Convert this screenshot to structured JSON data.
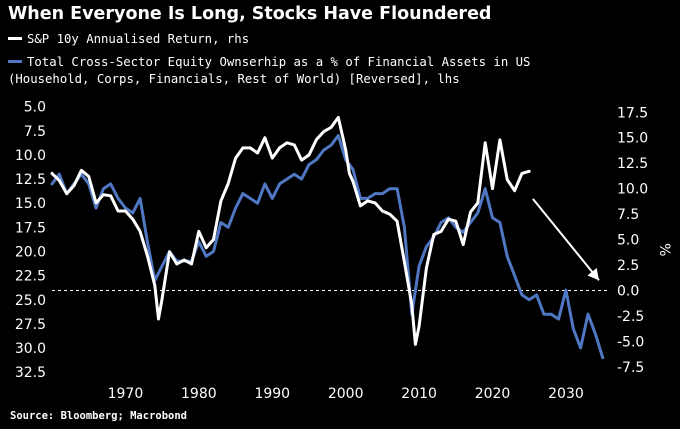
{
  "title": "When Everyone Is Long, Stocks Have Floundered",
  "source": "Source: Bloomberg; Macrobond",
  "colors": {
    "background": "#000000",
    "sp_line": "#ffffff",
    "equity_line": "#4f77c2",
    "text": "#ffffff",
    "arrow": "#ffffff"
  },
  "chart_data": {
    "type": "line",
    "title": "When Everyone Is Long, Stocks Have Floundered",
    "legend": [
      {
        "name": "S&P 10y Annualised Return, rhs",
        "color": "#ffffff"
      },
      {
        "name": "Total Cross-Sector Equity Ownserhip as a % of Financial Assets in US",
        "name_line2": "(Household, Corps, Financials, Rest of World) [Reversed], lhs",
        "color": "#4f77c2"
      }
    ],
    "xlim": [
      1960,
      2036
    ],
    "x_ticks": [
      "1970",
      "1980",
      "1990",
      "2000",
      "2010",
      "2020",
      "2030"
    ],
    "left_axis": {
      "ticks": [
        "5.0",
        "7.5",
        "10.0",
        "12.5",
        "15.0",
        "17.5",
        "20.0",
        "22.5",
        "25.0",
        "27.5",
        "30.0",
        "32.5"
      ],
      "range": [
        4,
        33
      ],
      "reversed": true
    },
    "right_axis": {
      "ticks": [
        "17.5",
        "15.0",
        "12.5",
        "10.0",
        "7.5",
        "5.0",
        "2.5",
        "0.0",
        "-2.5",
        "-5.0",
        "-7.5"
      ],
      "range": [
        -8.5,
        19
      ],
      "unit_label": "%",
      "reference_line": 0
    },
    "series": [
      {
        "name": "S&P 10y Annualised Return",
        "axis": "right",
        "color": "#ffffff",
        "x": [
          1960,
          1961,
          1962,
          1963,
          1964,
          1965,
          1966,
          1967,
          1968,
          1969,
          1970,
          1971,
          1972,
          1973,
          1974,
          1974.5,
          1975,
          1976,
          1977,
          1978,
          1979,
          1980,
          1981,
          1982,
          1983,
          1984,
          1985,
          1986,
          1987,
          1988,
          1989,
          1990,
          1991,
          1992,
          1993,
          1994,
          1995,
          1996,
          1997,
          1998,
          1999,
          2000,
          2000.5,
          2001,
          2002,
          2003,
          2004,
          2005,
          2006,
          2007,
          2008,
          2009,
          2009.5,
          2010,
          2011,
          2012,
          2013,
          2014,
          2015,
          2016,
          2017,
          2018,
          2019,
          2020,
          2021,
          2022,
          2023,
          2024,
          2025
        ],
        "values": [
          11.5,
          10.8,
          9.5,
          10.3,
          11.8,
          11.2,
          8.6,
          9.4,
          9.3,
          7.8,
          7.8,
          7.0,
          5.8,
          3.4,
          0.5,
          -2.8,
          -0.8,
          3.8,
          2.6,
          3.0,
          2.6,
          5.8,
          4.2,
          5.0,
          8.8,
          10.5,
          13.0,
          14.0,
          14.0,
          13.5,
          15.0,
          13.0,
          14.0,
          14.5,
          14.3,
          12.8,
          13.3,
          14.8,
          15.6,
          16.0,
          17.0,
          13.8,
          11.5,
          10.7,
          8.3,
          8.8,
          8.6,
          7.8,
          7.5,
          6.8,
          2.8,
          -1.4,
          -5.3,
          -3.5,
          2.2,
          5.5,
          5.8,
          7.0,
          6.8,
          4.5,
          7.7,
          8.6,
          14.5,
          10.0,
          14.8,
          10.9,
          9.8,
          11.5,
          11.7
        ]
      },
      {
        "name": "Total Cross-Sector Equity Ownership (% of Financial Assets, Reversed)",
        "axis": "left",
        "color": "#4f77c2",
        "x": [
          1960,
          1961,
          1962,
          1963,
          1964,
          1965,
          1966,
          1967,
          1968,
          1969,
          1970,
          1971,
          1972,
          1973,
          1974,
          1975,
          1976,
          1977,
          1978,
          1979,
          1980,
          1981,
          1982,
          1983,
          1984,
          1985,
          1986,
          1987,
          1988,
          1989,
          1990,
          1991,
          1992,
          1993,
          1994,
          1995,
          1996,
          1997,
          1998,
          1999,
          2000,
          2001,
          2002,
          2003,
          2004,
          2005,
          2006,
          2007,
          2008,
          2009,
          2010,
          2011,
          2012,
          2013,
          2014,
          2015,
          2016,
          2017,
          2018,
          2019,
          2020,
          2021,
          2022,
          2023,
          2024,
          2025,
          2026,
          2027,
          2028,
          2029,
          2030,
          2031,
          2032,
          2033,
          2034,
          2035
        ],
        "values": [
          13.0,
          12.0,
          14.0,
          13.0,
          12.0,
          13.0,
          15.5,
          13.5,
          13.0,
          14.5,
          15.5,
          16.0,
          14.5,
          19.0,
          23.0,
          21.5,
          20.0,
          21.0,
          21.0,
          21.0,
          19.0,
          20.5,
          20.0,
          17.0,
          17.5,
          15.5,
          14.0,
          14.5,
          15.0,
          13.0,
          14.5,
          13.0,
          12.5,
          12.0,
          12.5,
          11.0,
          10.5,
          9.5,
          9.0,
          8.0,
          10.5,
          11.5,
          14.5,
          14.5,
          14.0,
          14.0,
          13.5,
          13.5,
          17.5,
          26.5,
          21.5,
          19.5,
          18.5,
          17.0,
          16.5,
          17.5,
          18.0,
          17.0,
          16.0,
          13.5,
          16.5,
          17.0,
          20.5,
          22.5,
          24.5,
          25.0,
          24.5,
          26.5,
          26.5,
          27.0,
          24.0,
          28.0,
          30.0,
          26.5,
          28.5,
          31.0
        ]
      }
    ],
    "annotations": [
      {
        "type": "arrow",
        "from": {
          "x": 2025.5,
          "y_right": 9.0
        },
        "to": {
          "x": 2034.5,
          "y_right": 1.0
        }
      }
    ]
  }
}
